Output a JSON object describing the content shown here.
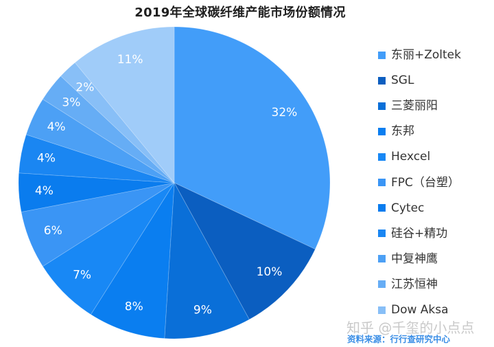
{
  "chart_data": {
    "type": "pie",
    "title": "2019年全球碳纤维产能市场份额情况",
    "unit": "%",
    "start": "top",
    "direction": "clockwise",
    "categories": [
      "东丽+Zoltek",
      "SGL",
      "三菱丽阳",
      "东邦",
      "Hexcel",
      "FPC（台塑）",
      "Cytec",
      "硅谷+精功",
      "中复神鹰",
      "江苏恒神",
      "Dow Aksa",
      ""
    ],
    "values": [
      32,
      10,
      9,
      8,
      7,
      6,
      4,
      4,
      4,
      3,
      2,
      11
    ],
    "data_labels": [
      "32%",
      "10%",
      "9%",
      "8%",
      "7%",
      "6%",
      "4%",
      "4%",
      "4%",
      "3%",
      "2%",
      "11%"
    ],
    "colors": [
      "#429DF9",
      "#0B5EC0",
      "#0A6FD8",
      "#0A7EF0",
      "#1888F5",
      "#3A95F5",
      "#0A7CEE",
      "#1A86F2",
      "#4CA0F5",
      "#66ADF5",
      "#88BFF7",
      "#A0CCF9"
    ],
    "legend": {
      "position": "right",
      "entries": [
        {
          "label": "东丽+Zoltek",
          "color": "#429DF9"
        },
        {
          "label": "SGL",
          "color": "#0B5EC0"
        },
        {
          "label": "三菱丽阳",
          "color": "#0A6FD8"
        },
        {
          "label": "东邦",
          "color": "#0A7EF0"
        },
        {
          "label": "Hexcel",
          "color": "#1888F5"
        },
        {
          "label": "FPC（台塑）",
          "color": "#3A95F5"
        },
        {
          "label": "Cytec",
          "color": "#0A7CEE"
        },
        {
          "label": "硅谷+精功",
          "color": "#1A86F2"
        },
        {
          "label": "中复神鹰",
          "color": "#4CA0F5"
        },
        {
          "label": "江苏恒神",
          "color": "#66ADF5"
        },
        {
          "label": "Dow Aksa",
          "color": "#88BFF7"
        }
      ]
    }
  },
  "watermark": "知乎 @千玺的小点点",
  "source": "资料来源：行行查研究中心"
}
